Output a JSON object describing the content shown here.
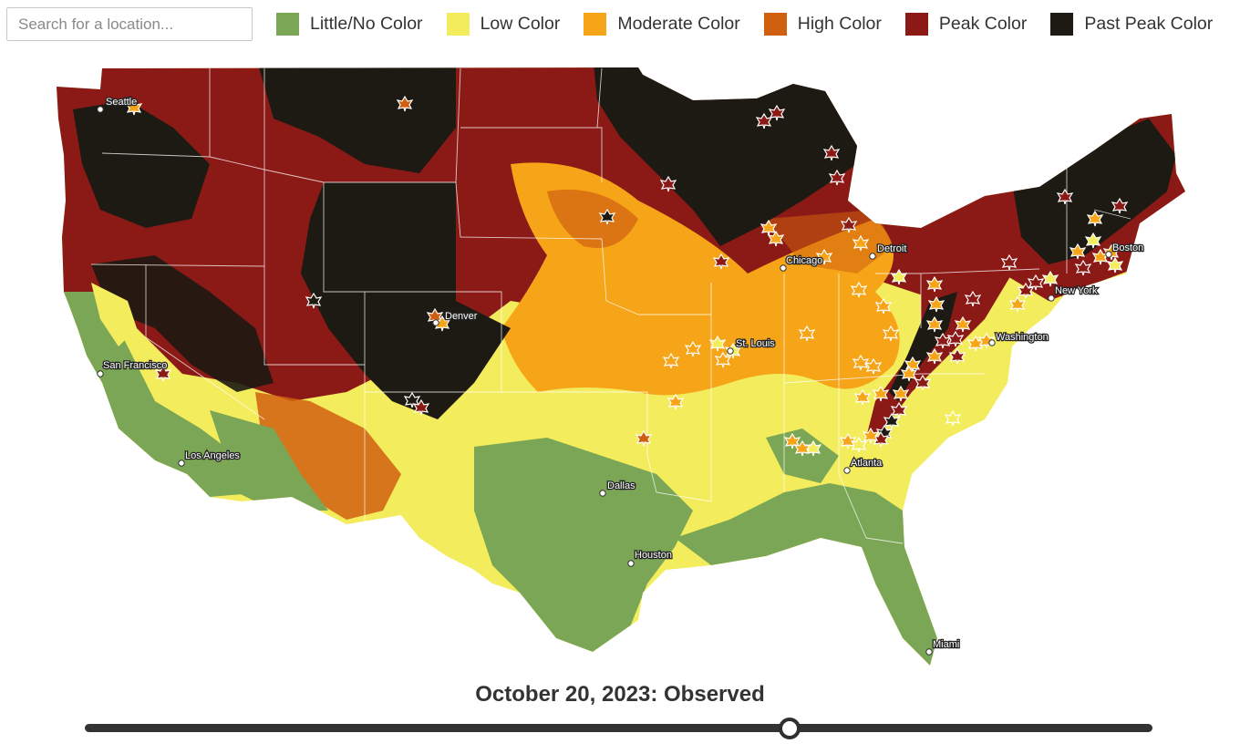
{
  "search": {
    "placeholder": "Search for a location..."
  },
  "legend": [
    {
      "label": "Little/No Color",
      "color": "#7aa655"
    },
    {
      "label": "Low Color",
      "color": "#f3ec5c"
    },
    {
      "label": "Moderate Color",
      "color": "#f6a418"
    },
    {
      "label": "High Color",
      "color": "#d0600f"
    },
    {
      "label": "Peak Color",
      "color": "#8b1a17"
    },
    {
      "label": "Past Peak Color",
      "color": "#1c1a12"
    }
  ],
  "map": {
    "cities": [
      "Seattle",
      "San Francisco",
      "Los Angeles",
      "Denver",
      "Dallas",
      "Houston",
      "St. Louis",
      "Chicago",
      "Detroit",
      "Atlanta",
      "Miami",
      "Washington",
      "New York",
      "Boston"
    ]
  },
  "timeline": {
    "date_label": "October 20, 2023: Observed",
    "position_fraction": 0.66
  }
}
